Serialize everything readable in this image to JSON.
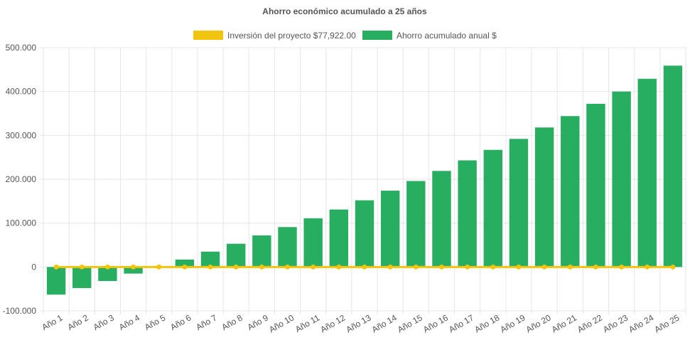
{
  "chart_data": {
    "type": "bar",
    "title": "Ahorro económico acumulado a 25 años",
    "legend_position": "top",
    "grid": true,
    "categories": [
      "Año 1",
      "Año 2",
      "Año 3",
      "Año 4",
      "Año 5",
      "Año 6",
      "Año 7",
      "Año 8",
      "Año 9",
      "Año 10",
      "Año 11",
      "Año 12",
      "Año 13",
      "Año 14",
      "Año 15",
      "Año 16",
      "Año 17",
      "Año 18",
      "Año 19",
      "Año 20",
      "Año 21",
      "Año 22",
      "Año 23",
      "Año 24",
      "Año 25"
    ],
    "ylim": [
      -100000,
      500000
    ],
    "yticks": [
      500000,
      400000,
      300000,
      200000,
      100000,
      0,
      -100000
    ],
    "ytick_labels": [
      "500.000",
      "400.000",
      "300.000",
      "200.000",
      "100.000",
      "0",
      "-100.000"
    ],
    "series": [
      {
        "name": "Inversión del proyecto $77,922.00",
        "type": "line",
        "color": "#f2c40f",
        "values": [
          0,
          0,
          0,
          0,
          0,
          0,
          0,
          0,
          0,
          0,
          0,
          0,
          0,
          0,
          0,
          0,
          0,
          0,
          0,
          0,
          0,
          0,
          0,
          0,
          0
        ]
      },
      {
        "name": "Ahorro acumulado anual $",
        "type": "bar",
        "color": "#27ae60",
        "values": [
          -63000,
          -48000,
          -32000,
          -15000,
          0,
          17000,
          35000,
          53000,
          72000,
          91000,
          111000,
          131000,
          152000,
          174000,
          196000,
          219000,
          243000,
          267000,
          292000,
          318000,
          344000,
          372000,
          400000,
          429000,
          459000
        ]
      }
    ]
  }
}
